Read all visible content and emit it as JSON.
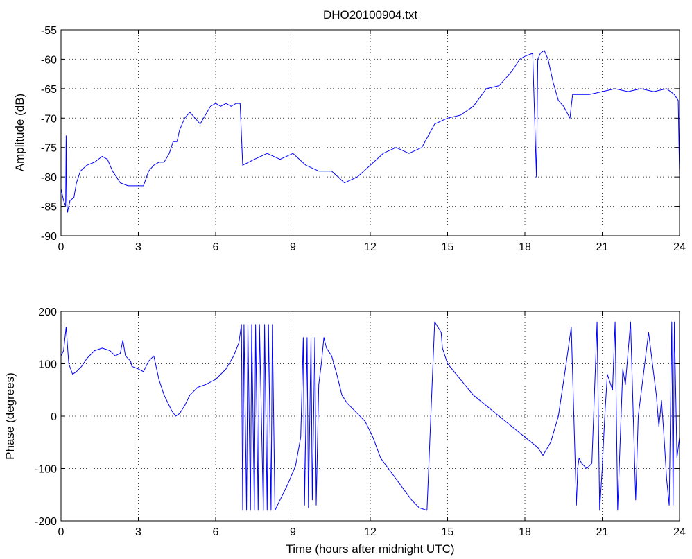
{
  "chart_data": [
    {
      "type": "line",
      "title": "DHO20100904.txt",
      "xlabel": "",
      "ylabel": "Amplitude (dB)",
      "xlim": [
        0,
        24
      ],
      "ylim": [
        -90,
        -55
      ],
      "xticks": [
        0,
        3,
        6,
        9,
        12,
        15,
        18,
        21,
        24
      ],
      "yticks": [
        -90,
        -85,
        -80,
        -75,
        -70,
        -65,
        -60,
        -55
      ],
      "grid": true,
      "color": "#0000ff",
      "series": [
        {
          "x": [
            0.0,
            0.1,
            0.18,
            0.2,
            0.22,
            0.25,
            0.35,
            0.5,
            0.6,
            0.75,
            1.0,
            1.3,
            1.6,
            1.8,
            2.0,
            2.3,
            2.6,
            2.9,
            3.2,
            3.4,
            3.6,
            3.8,
            4.0,
            4.2,
            4.35,
            4.5,
            4.6,
            4.8,
            5.0,
            5.2,
            5.4,
            5.6,
            5.8,
            6.0,
            6.2,
            6.4,
            6.6,
            6.8,
            6.95,
            7.05,
            7.5,
            8.0,
            8.5,
            9.0,
            9.5,
            10.0,
            10.5,
            11.0,
            11.5,
            12.0,
            12.5,
            13.0,
            13.5,
            14.0,
            14.5,
            15.0,
            15.5,
            16.0,
            16.5,
            17.0,
            17.5,
            17.8,
            18.0,
            18.3,
            18.45,
            18.5,
            18.6,
            18.75,
            18.9,
            19.1,
            19.3,
            19.5,
            19.75,
            19.85,
            20.0,
            20.5,
            21.0,
            21.5,
            22.0,
            22.5,
            23.0,
            23.5,
            23.8,
            23.95,
            24.0
          ],
          "y": [
            -82,
            -84,
            -85,
            -73,
            -84,
            -86,
            -84,
            -83.5,
            -81,
            -79,
            -78,
            -77.5,
            -76.5,
            -77,
            -79,
            -81,
            -81.5,
            -81.5,
            -81.5,
            -79,
            -78,
            -77.5,
            -77.5,
            -76,
            -74,
            -74,
            -72,
            -70,
            -69,
            -70,
            -71,
            -69.5,
            -68,
            -67.5,
            -68,
            -67.5,
            -68,
            -67.5,
            -67.5,
            -78,
            -77,
            -76,
            -77,
            -76,
            -78,
            -79,
            -79,
            -81,
            -80,
            -78,
            -76,
            -75,
            -76,
            -75,
            -71,
            -70,
            -69.5,
            -68,
            -65,
            -64.5,
            -62,
            -60,
            -59.5,
            -59,
            -80,
            -60,
            -59,
            -58.5,
            -60,
            -64,
            -67,
            -68,
            -70,
            -66,
            -66,
            -66,
            -65.5,
            -65,
            -65.5,
            -65,
            -65.5,
            -65,
            -66,
            -67,
            -80
          ]
        }
      ]
    },
    {
      "type": "line",
      "title": "",
      "xlabel": "Time (hours after midnight UTC)",
      "ylabel": "Phase (degrees)",
      "xlim": [
        0,
        24
      ],
      "ylim": [
        -200,
        200
      ],
      "xticks": [
        0,
        3,
        6,
        9,
        12,
        15,
        18,
        21,
        24
      ],
      "yticks": [
        -200,
        -100,
        0,
        100,
        200
      ],
      "grid": true,
      "color": "#0000ff",
      "series": [
        {
          "x": [
            0.0,
            0.1,
            0.2,
            0.3,
            0.45,
            0.6,
            0.8,
            1.0,
            1.3,
            1.6,
            1.9,
            2.1,
            2.3,
            2.4,
            2.5,
            2.7,
            2.75,
            3.0,
            3.2,
            3.4,
            3.6,
            3.8,
            4.0,
            4.3,
            4.45,
            4.6,
            4.8,
            5.0,
            5.3,
            5.6,
            6.0,
            6.4,
            6.7,
            6.9,
            7.0,
            7.05,
            7.1,
            7.2,
            7.25,
            7.35,
            7.4,
            7.5,
            7.55,
            7.65,
            7.7,
            7.85,
            7.9,
            8.0,
            8.05,
            8.15,
            8.2,
            8.3,
            8.4,
            8.5,
            8.8,
            9.1,
            9.3,
            9.4,
            9.45,
            9.55,
            9.6,
            9.7,
            9.75,
            9.85,
            9.9,
            10.0,
            10.1,
            10.2,
            10.3,
            10.5,
            10.7,
            10.9,
            11.1,
            11.3,
            11.5,
            11.8,
            12.1,
            12.4,
            12.7,
            13.0,
            13.3,
            13.6,
            13.9,
            14.2,
            14.5,
            14.75,
            14.8,
            15.0,
            15.5,
            16.0,
            16.5,
            17.0,
            17.5,
            18.0,
            18.5,
            18.7,
            19.0,
            19.3,
            19.6,
            19.8,
            20.0,
            20.05,
            20.1,
            20.2,
            20.4,
            20.6,
            20.8,
            20.9,
            21.0,
            21.1,
            21.2,
            21.4,
            21.5,
            21.6,
            21.8,
            21.9,
            22.1,
            22.3,
            22.4,
            22.6,
            22.8,
            23.0,
            23.1,
            23.2,
            23.3,
            23.4,
            23.5,
            23.6,
            23.7,
            23.75,
            23.8,
            23.9,
            24.0
          ],
          "y": [
            115,
            125,
            170,
            100,
            80,
            85,
            95,
            110,
            125,
            130,
            125,
            115,
            120,
            145,
            115,
            105,
            95,
            90,
            85,
            105,
            115,
            70,
            40,
            10,
            0,
            5,
            20,
            40,
            55,
            60,
            70,
            90,
            115,
            140,
            175,
            -180,
            175,
            -180,
            175,
            -180,
            175,
            -180,
            175,
            -180,
            175,
            -180,
            175,
            -180,
            175,
            -180,
            175,
            -180,
            -170,
            -160,
            -130,
            -95,
            -40,
            150,
            -170,
            150,
            -175,
            150,
            -160,
            150,
            -170,
            60,
            100,
            150,
            130,
            115,
            80,
            40,
            25,
            15,
            5,
            -10,
            -40,
            -80,
            -100,
            -120,
            -140,
            -160,
            -175,
            -180,
            180,
            160,
            130,
            100,
            70,
            40,
            20,
            0,
            -20,
            -40,
            -60,
            -75,
            -50,
            0,
            100,
            170,
            -170,
            -100,
            -80,
            -90,
            -100,
            -90,
            180,
            -180,
            -100,
            0,
            80,
            50,
            180,
            -180,
            90,
            60,
            180,
            -160,
            0,
            80,
            160,
            80,
            40,
            -20,
            30,
            -40,
            -120,
            -170,
            180,
            -170,
            180,
            -80,
            -40
          ]
        }
      ]
    }
  ]
}
